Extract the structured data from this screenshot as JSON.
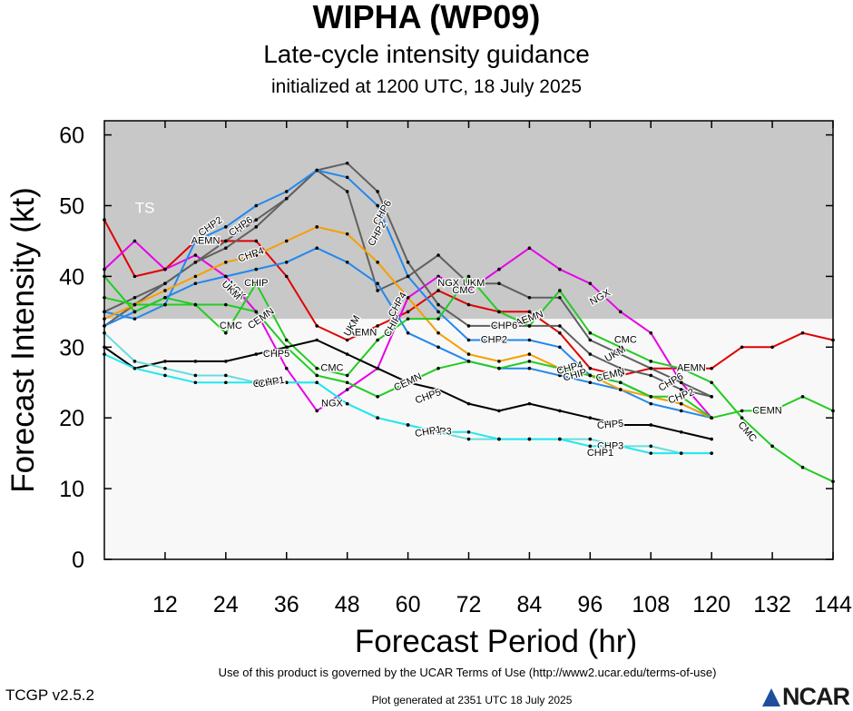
{
  "header": {
    "title": "WIPHA (WP09)",
    "subtitle": "Late-cycle intensity guidance",
    "init": "initialized at 1200 UTC, 18 July 2025"
  },
  "footer": {
    "terms": "Use of this product is governed by the UCAR Terms of Use (http://www2.ucar.edu/terms-of-use)",
    "version": "TCGP v2.5.2",
    "generated": "Plot generated at 2351 UTC   18 July 2025",
    "logo": "NCAR"
  },
  "chart_data": {
    "type": "line",
    "xlabel": "Forecast Period (hr)",
    "ylabel": "Forecast Intensity (kt)",
    "xlim": [
      0,
      144
    ],
    "ylim": [
      0,
      62
    ],
    "xticks": [
      12,
      24,
      36,
      48,
      60,
      72,
      84,
      96,
      108,
      120,
      132,
      144
    ],
    "yticks": [
      0,
      10,
      20,
      30,
      40,
      50,
      60
    ],
    "band": {
      "label": "TS",
      "from": 34,
      "to": 62,
      "color": "#c8c8c8"
    },
    "below_band_color": "#f8f8f8",
    "series": [
      {
        "name": "AEMN",
        "color": "#e00000",
        "x": [
          0,
          6,
          12,
          18,
          24,
          30,
          36,
          42,
          48,
          54,
          60,
          66,
          72,
          78,
          84,
          90,
          96,
          102,
          108,
          114,
          120,
          126,
          132,
          138,
          144
        ],
        "y": [
          48,
          40,
          41,
          45,
          45,
          45,
          40,
          33,
          31,
          33,
          35,
          38,
          36,
          35,
          35,
          32,
          27,
          26,
          27,
          27,
          27,
          30,
          30,
          32,
          31
        ],
        "labels": [
          {
            "text": "AEMN",
            "x": 20,
            "y": 45,
            "rot": 0
          },
          {
            "text": "AEMN",
            "x": 51,
            "y": 32,
            "rot": 0
          },
          {
            "text": "AEMN",
            "x": 84,
            "y": 34,
            "rot": -20
          },
          {
            "text": "AEMN",
            "x": 116,
            "y": 27,
            "rot": 0
          }
        ]
      },
      {
        "name": "NGX",
        "color": "#e800e8",
        "x": [
          0,
          6,
          12,
          18,
          24,
          30,
          36,
          42,
          48,
          54,
          60,
          66,
          72,
          78,
          84,
          90,
          96,
          102,
          108,
          114,
          120
        ],
        "y": [
          41,
          45,
          41,
          43,
          40,
          35,
          27,
          21,
          24,
          27,
          37,
          40,
          38,
          41,
          44,
          41,
          39,
          35,
          32,
          25,
          20
        ],
        "labels": [
          {
            "text": "NGX",
            "x": 26,
            "y": 38,
            "rot": 45
          },
          {
            "text": "NGX",
            "x": 45,
            "y": 22,
            "rot": 0
          },
          {
            "text": "NGX",
            "x": 68,
            "y": 39,
            "rot": 0
          },
          {
            "text": "NGX",
            "x": 98,
            "y": 37,
            "rot": -30
          }
        ]
      },
      {
        "name": "UKM",
        "color": "#606060",
        "x": [
          0,
          6,
          12,
          18,
          24,
          30,
          36,
          42,
          48,
          54,
          60,
          66,
          72,
          78,
          84,
          90,
          96,
          102,
          108,
          114,
          120
        ],
        "y": [
          33,
          36,
          39,
          42,
          44,
          47,
          51,
          55,
          52,
          38,
          40,
          43,
          39,
          39,
          37,
          37,
          31,
          29,
          27,
          25,
          23
        ],
        "labels": [
          {
            "text": "UKM",
            "x": 25,
            "y": 38,
            "rot": 45
          },
          {
            "text": "UKM",
            "x": 49,
            "y": 33,
            "rot": -60
          },
          {
            "text": "UKM",
            "x": 73,
            "y": 39,
            "rot": 0
          },
          {
            "text": "UKM",
            "x": 101,
            "y": 29,
            "rot": -30
          }
        ]
      },
      {
        "name": "CHP6",
        "color": "#606060",
        "x": [
          0,
          6,
          12,
          18,
          24,
          30,
          36,
          42,
          48,
          54,
          60,
          66,
          72,
          78,
          84,
          90,
          96,
          102,
          108,
          114,
          120
        ],
        "y": [
          35,
          37,
          39,
          42,
          45,
          48,
          51,
          55,
          56,
          52,
          42,
          36,
          33,
          33,
          33,
          33,
          29,
          27,
          26,
          24,
          23
        ],
        "labels": [
          {
            "text": "CHP6",
            "x": 27,
            "y": 47,
            "rot": -35
          },
          {
            "text": "CHP6",
            "x": 55,
            "y": 49,
            "rot": -60
          },
          {
            "text": "CHP6",
            "x": 79,
            "y": 33,
            "rot": 0
          },
          {
            "text": "CHP6",
            "x": 112,
            "y": 25,
            "rot": -30
          }
        ]
      },
      {
        "name": "CHP2",
        "color": "#2288ee",
        "x": [
          0,
          6,
          12,
          18,
          24,
          30,
          36,
          42,
          48,
          54,
          60,
          66,
          72,
          78,
          84,
          90,
          96,
          102,
          108,
          114,
          120
        ],
        "y": [
          35,
          34,
          36,
          45,
          47,
          50,
          52,
          55,
          54,
          50,
          40,
          35,
          31,
          31,
          31,
          30,
          26,
          25,
          23,
          22,
          20
        ],
        "labels": [
          {
            "text": "CHP2",
            "x": 21,
            "y": 47,
            "rot": -35
          },
          {
            "text": "CHP2",
            "x": 54,
            "y": 46,
            "rot": -60
          },
          {
            "text": "CHP2",
            "x": 77,
            "y": 31,
            "rot": 0
          },
          {
            "text": "CHP2",
            "x": 114,
            "y": 23,
            "rot": -20
          }
        ]
      },
      {
        "name": "CHIP",
        "color": "#2288ee",
        "x": [
          0,
          6,
          12,
          18,
          24,
          30,
          36,
          42,
          48,
          54,
          60,
          66,
          72,
          78,
          84,
          90,
          96,
          102,
          108,
          114,
          120
        ],
        "y": [
          33,
          35,
          37,
          39,
          40,
          41,
          42,
          44,
          42,
          39,
          32,
          30,
          28,
          27,
          27,
          26,
          25,
          24,
          22,
          21,
          20
        ],
        "labels": [
          {
            "text": "CHIP",
            "x": 30,
            "y": 39,
            "rot": 0
          },
          {
            "text": "CHIP",
            "x": 57,
            "y": 33,
            "rot": -60
          },
          {
            "text": "CHIP",
            "x": 93,
            "y": 26,
            "rot": -15
          }
        ]
      },
      {
        "name": "CHP4",
        "color": "#f5a000",
        "x": [
          0,
          6,
          12,
          18,
          24,
          30,
          36,
          42,
          48,
          54,
          60,
          66,
          72,
          78,
          84,
          90,
          96,
          102,
          108,
          114,
          120
        ],
        "y": [
          34,
          36,
          38,
          40,
          42,
          43,
          45,
          47,
          46,
          42,
          37,
          32,
          29,
          28,
          29,
          27,
          26,
          24,
          23,
          22,
          20
        ],
        "labels": [
          {
            "text": "CHP4",
            "x": 29,
            "y": 43,
            "rot": -20
          },
          {
            "text": "CHP4",
            "x": 58,
            "y": 36,
            "rot": -60
          },
          {
            "text": "CHP4",
            "x": 92,
            "y": 27,
            "rot": -15
          }
        ]
      },
      {
        "name": "CEMN",
        "color": "#22cc22",
        "x": [
          0,
          6,
          12,
          18,
          24,
          30,
          36,
          42,
          48,
          54,
          60,
          66,
          72,
          78,
          84,
          90,
          96,
          102,
          108,
          114,
          120,
          126,
          132,
          138,
          144
        ],
        "y": [
          37,
          36,
          36,
          36,
          36,
          35,
          30,
          26,
          25,
          23,
          25,
          27,
          28,
          27,
          28,
          27,
          26,
          25,
          23,
          23,
          20,
          21,
          21,
          23,
          21
        ],
        "labels": [
          {
            "text": "CEMN",
            "x": 31,
            "y": 34,
            "rot": -35
          },
          {
            "text": "CEMN",
            "x": 60,
            "y": 25,
            "rot": -25
          },
          {
            "text": "CEMN",
            "x": 100,
            "y": 26,
            "rot": -15
          },
          {
            "text": "CEMN",
            "x": 131,
            "y": 21,
            "rot": 0
          }
        ]
      },
      {
        "name": "CMC",
        "color": "#22cc22",
        "x": [
          0,
          6,
          12,
          18,
          24,
          30,
          36,
          42,
          48,
          54,
          60,
          66,
          72,
          78,
          84,
          90,
          96,
          102,
          108,
          114,
          120,
          126,
          132,
          138,
          144
        ],
        "y": [
          40,
          35,
          37,
          36,
          32,
          39,
          31,
          27,
          26,
          31,
          34,
          34,
          40,
          35,
          33,
          38,
          32,
          30,
          28,
          27,
          25,
          20,
          16,
          13,
          11
        ],
        "labels": [
          {
            "text": "CMC",
            "x": 25,
            "y": 33,
            "rot": 0
          },
          {
            "text": "CMC",
            "x": 45,
            "y": 27,
            "rot": 0
          },
          {
            "text": "CMC",
            "x": 71,
            "y": 38,
            "rot": 0
          },
          {
            "text": "CMC",
            "x": 103,
            "y": 31,
            "rot": 0
          },
          {
            "text": "CMC",
            "x": 127,
            "y": 18,
            "rot": 50
          }
        ]
      },
      {
        "name": "CHP5",
        "color": "#000000",
        "x": [
          0,
          6,
          12,
          18,
          24,
          30,
          36,
          42,
          48,
          54,
          60,
          66,
          72,
          78,
          84,
          90,
          96,
          102,
          108,
          114,
          120
        ],
        "y": [
          30,
          27,
          28,
          28,
          28,
          29,
          30,
          31,
          29,
          27,
          25,
          24,
          22,
          21,
          22,
          21,
          20,
          19,
          19,
          18,
          17
        ],
        "labels": [
          {
            "text": "CHP5",
            "x": 34,
            "y": 29,
            "rot": 0
          },
          {
            "text": "CHP5",
            "x": 64,
            "y": 23,
            "rot": -20
          },
          {
            "text": "CHP5",
            "x": 100,
            "y": 19,
            "rot": -5
          }
        ]
      },
      {
        "name": "CHP3",
        "color": "#66dddd",
        "x": [
          0,
          6,
          12,
          18,
          24,
          30,
          36,
          42,
          48,
          54,
          60,
          66,
          72,
          78,
          84,
          90,
          96,
          102,
          108,
          114,
          120
        ],
        "y": [
          32,
          28,
          27,
          26,
          26,
          25,
          25,
          25,
          22,
          20,
          19,
          18,
          17,
          17,
          17,
          17,
          17,
          16,
          16,
          15,
          15
        ],
        "labels": [
          {
            "text": "CHP3",
            "x": 32,
            "y": 25,
            "rot": -10
          },
          {
            "text": "CHP3",
            "x": 66,
            "y": 18,
            "rot": 0
          },
          {
            "text": "CHP3",
            "x": 100,
            "y": 16,
            "rot": 0
          }
        ]
      },
      {
        "name": "CHP1",
        "color": "#22e8ee",
        "x": [
          0,
          6,
          12,
          18,
          24,
          30,
          36,
          42,
          48,
          54,
          60,
          66,
          72,
          78,
          84,
          90,
          96,
          102,
          108,
          114,
          120
        ],
        "y": [
          29,
          27,
          26,
          25,
          25,
          25,
          25,
          25,
          22,
          20,
          19,
          18,
          18,
          17,
          17,
          17,
          16,
          16,
          15,
          15,
          15
        ],
        "labels": [
          {
            "text": "CHP1",
            "x": 33,
            "y": 25,
            "rot": -10
          },
          {
            "text": "CHP1",
            "x": 64,
            "y": 18,
            "rot": -10
          },
          {
            "text": "CHP1",
            "x": 98,
            "y": 15,
            "rot": 0
          }
        ]
      }
    ]
  }
}
